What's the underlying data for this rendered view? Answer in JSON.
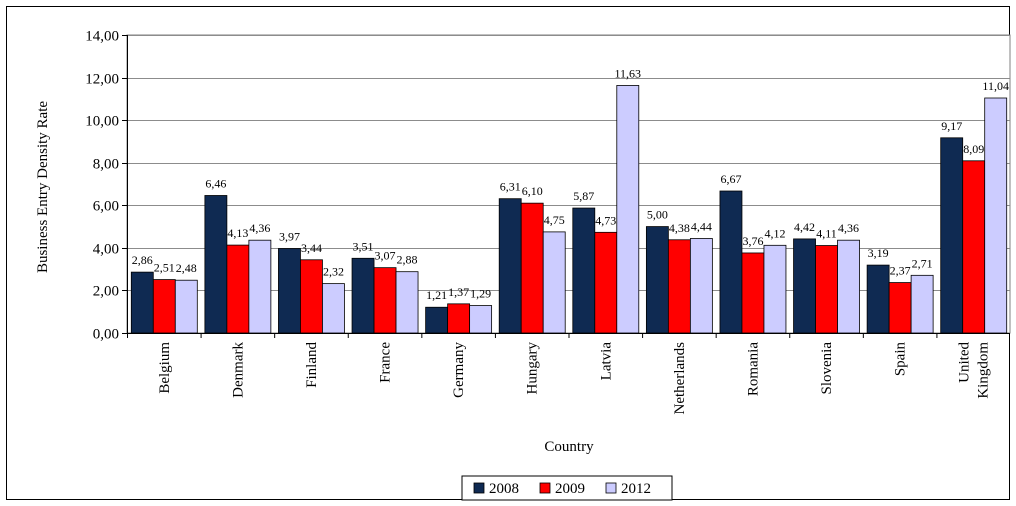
{
  "chart_data": {
    "type": "bar",
    "title": "",
    "xlabel": "Country",
    "ylabel": "Business Entry Density Rate",
    "ylim": [
      0,
      14
    ],
    "y_ticks": [
      "0,00",
      "2,00",
      "4,00",
      "6,00",
      "8,00",
      "10,00",
      "12,00",
      "14,00"
    ],
    "grid": true,
    "legend_position": "bottom",
    "categories": [
      "Belgium",
      "Denmark",
      "Finland",
      "France",
      "Germany",
      "Hungary",
      "Latvia",
      "Netherlands",
      "Romania",
      "Slovenia",
      "Spain",
      "United Kingdom"
    ],
    "series": [
      {
        "name": "2008",
        "color": "#0f2a52",
        "values": [
          2.86,
          6.46,
          3.97,
          3.51,
          1.21,
          6.31,
          5.87,
          5.0,
          6.67,
          4.42,
          3.19,
          9.17
        ],
        "labels": [
          "2,86",
          "6,46",
          "3,97",
          "3,51",
          "1,21",
          "6,31",
          "5,87",
          "5,00",
          "6,67",
          "4,42",
          "3,19",
          "9,17"
        ]
      },
      {
        "name": "2009",
        "color": "#ff0000",
        "values": [
          2.51,
          4.13,
          3.44,
          3.07,
          1.37,
          6.1,
          4.73,
          4.38,
          3.76,
          4.11,
          2.37,
          8.09
        ],
        "labels": [
          "2,51",
          "4,13",
          "3,44",
          "3,07",
          "1,37",
          "6,10",
          "4,73",
          "4,38",
          "3,76",
          "4,11",
          "2,37",
          "8,09"
        ]
      },
      {
        "name": "2012",
        "color": "#ccccff",
        "values": [
          2.48,
          4.36,
          2.32,
          2.88,
          1.29,
          4.75,
          11.63,
          4.44,
          4.12,
          4.36,
          2.71,
          11.04
        ],
        "labels": [
          "2,48",
          "4,36",
          "2,32",
          "2,88",
          "1,29",
          "4,75",
          "11,63",
          "4,44",
          "4,12",
          "4,36",
          "2,71",
          "11,04"
        ]
      }
    ]
  }
}
